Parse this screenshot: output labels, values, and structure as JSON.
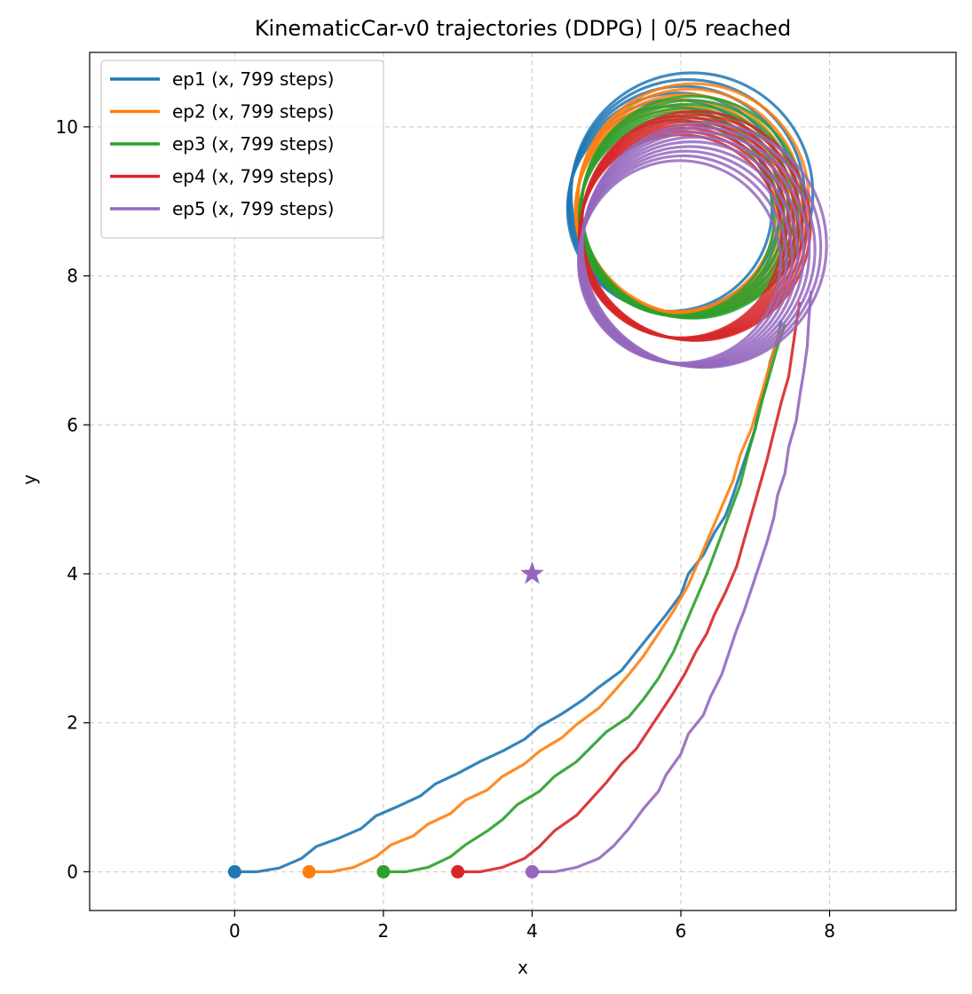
{
  "chart_data": {
    "type": "line",
    "title": "KinematicCar-v0 trajectories (DDPG) | 0/5 reached",
    "xlabel": "x",
    "ylabel": "y",
    "xlim": [
      -1.95,
      9.7
    ],
    "ylim": [
      -0.52,
      11.0
    ],
    "xticks": [
      0,
      2,
      4,
      6,
      8
    ],
    "yticks": [
      0,
      2,
      4,
      6,
      8,
      10
    ],
    "grid": true,
    "legend_position": "top-left",
    "goal": {
      "x": 4.0,
      "y": 4.0,
      "marker": "star",
      "color": "#9467bd"
    },
    "series": [
      {
        "name": "ep1 (x, 799 steps)",
        "color": "#1f77b4",
        "start": {
          "x": 0,
          "y": 0
        },
        "path": [
          [
            0,
            0
          ],
          [
            0.3,
            0
          ],
          [
            0.6,
            0.05
          ],
          [
            0.9,
            0.18
          ],
          [
            1.1,
            0.34
          ],
          [
            1.4,
            0.45
          ],
          [
            1.7,
            0.58
          ],
          [
            1.9,
            0.75
          ],
          [
            2.2,
            0.88
          ],
          [
            2.5,
            1.02
          ],
          [
            2.7,
            1.18
          ],
          [
            3.0,
            1.32
          ],
          [
            3.3,
            1.48
          ],
          [
            3.6,
            1.62
          ],
          [
            3.9,
            1.78
          ],
          [
            4.1,
            1.95
          ],
          [
            4.4,
            2.12
          ],
          [
            4.7,
            2.32
          ],
          [
            4.9,
            2.48
          ],
          [
            5.2,
            2.7
          ],
          [
            5.4,
            2.95
          ],
          [
            5.6,
            3.2
          ],
          [
            5.8,
            3.45
          ],
          [
            6.0,
            3.72
          ],
          [
            6.1,
            4.0
          ],
          [
            6.3,
            4.25
          ],
          [
            6.45,
            4.55
          ],
          [
            6.6,
            4.78
          ],
          [
            6.7,
            5.05
          ],
          [
            6.8,
            5.35
          ],
          [
            6.9,
            5.65
          ],
          [
            7.0,
            5.95
          ],
          [
            7.05,
            6.25
          ],
          [
            7.15,
            6.55
          ],
          [
            7.2,
            6.85
          ],
          [
            7.3,
            7.15
          ],
          [
            7.35,
            7.4
          ]
        ],
        "orbit": {
          "cx": 6.0,
          "cy": 9.0,
          "rx": 1.5,
          "ry": 1.5,
          "rings": 6,
          "spread": 0.1
        }
      },
      {
        "name": "ep2 (x, 799 steps)",
        "color": "#ff7f0e",
        "start": {
          "x": 1,
          "y": 0
        },
        "path": [
          [
            1,
            0
          ],
          [
            1.3,
            0
          ],
          [
            1.6,
            0.06
          ],
          [
            1.9,
            0.2
          ],
          [
            2.1,
            0.36
          ],
          [
            2.4,
            0.48
          ],
          [
            2.6,
            0.64
          ],
          [
            2.9,
            0.78
          ],
          [
            3.1,
            0.96
          ],
          [
            3.4,
            1.1
          ],
          [
            3.6,
            1.28
          ],
          [
            3.9,
            1.45
          ],
          [
            4.1,
            1.62
          ],
          [
            4.4,
            1.8
          ],
          [
            4.6,
            1.98
          ],
          [
            4.9,
            2.2
          ],
          [
            5.1,
            2.42
          ],
          [
            5.3,
            2.65
          ],
          [
            5.5,
            2.9
          ],
          [
            5.7,
            3.2
          ],
          [
            5.9,
            3.5
          ],
          [
            6.1,
            3.85
          ],
          [
            6.25,
            4.2
          ],
          [
            6.4,
            4.55
          ],
          [
            6.55,
            4.9
          ],
          [
            6.7,
            5.25
          ],
          [
            6.8,
            5.6
          ],
          [
            6.95,
            5.95
          ],
          [
            7.05,
            6.3
          ],
          [
            7.15,
            6.65
          ],
          [
            7.25,
            7.0
          ],
          [
            7.35,
            7.3
          ]
        ],
        "orbit": {
          "cx": 6.05,
          "cy": 8.95,
          "rx": 1.45,
          "ry": 1.45,
          "rings": 6,
          "spread": 0.08
        }
      },
      {
        "name": "ep3 (x, 799 steps)",
        "color": "#2ca02c",
        "start": {
          "x": 2,
          "y": 0
        },
        "path": [
          [
            2,
            0
          ],
          [
            2.3,
            0
          ],
          [
            2.6,
            0.06
          ],
          [
            2.9,
            0.2
          ],
          [
            3.1,
            0.36
          ],
          [
            3.4,
            0.55
          ],
          [
            3.6,
            0.7
          ],
          [
            3.8,
            0.9
          ],
          [
            4.1,
            1.08
          ],
          [
            4.3,
            1.28
          ],
          [
            4.6,
            1.48
          ],
          [
            4.8,
            1.68
          ],
          [
            5.0,
            1.88
          ],
          [
            5.3,
            2.08
          ],
          [
            5.5,
            2.32
          ],
          [
            5.7,
            2.6
          ],
          [
            5.9,
            2.95
          ],
          [
            6.05,
            3.3
          ],
          [
            6.2,
            3.65
          ],
          [
            6.35,
            4.0
          ],
          [
            6.5,
            4.4
          ],
          [
            6.65,
            4.8
          ],
          [
            6.8,
            5.2
          ],
          [
            6.9,
            5.6
          ],
          [
            7.0,
            5.95
          ],
          [
            7.1,
            6.35
          ],
          [
            7.2,
            6.7
          ],
          [
            7.3,
            7.05
          ],
          [
            7.4,
            7.35
          ]
        ],
        "orbit": {
          "cx": 6.05,
          "cy": 8.85,
          "rx": 1.4,
          "ry": 1.4,
          "rings": 7,
          "spread": 0.06
        }
      },
      {
        "name": "ep4 (x, 799 steps)",
        "color": "#d62728",
        "start": {
          "x": 3,
          "y": 0
        },
        "path": [
          [
            3,
            0
          ],
          [
            3.3,
            0
          ],
          [
            3.6,
            0.06
          ],
          [
            3.9,
            0.18
          ],
          [
            4.1,
            0.34
          ],
          [
            4.3,
            0.55
          ],
          [
            4.6,
            0.76
          ],
          [
            4.8,
            0.98
          ],
          [
            5.0,
            1.2
          ],
          [
            5.2,
            1.45
          ],
          [
            5.4,
            1.65
          ],
          [
            5.6,
            1.95
          ],
          [
            5.8,
            2.25
          ],
          [
            5.9,
            2.4
          ],
          [
            6.05,
            2.65
          ],
          [
            6.2,
            2.95
          ],
          [
            6.35,
            3.2
          ],
          [
            6.45,
            3.45
          ],
          [
            6.6,
            3.75
          ],
          [
            6.75,
            4.1
          ],
          [
            6.85,
            4.45
          ],
          [
            6.95,
            4.8
          ],
          [
            7.05,
            5.15
          ],
          [
            7.15,
            5.5
          ],
          [
            7.25,
            5.9
          ],
          [
            7.35,
            6.3
          ],
          [
            7.45,
            6.65
          ],
          [
            7.5,
            7.0
          ],
          [
            7.55,
            7.35
          ],
          [
            7.6,
            7.65
          ]
        ],
        "orbit": {
          "cx": 6.1,
          "cy": 8.6,
          "rx": 1.45,
          "ry": 1.45,
          "rings": 8,
          "spread": 0.05
        }
      },
      {
        "name": "ep5 (x, 799 steps)",
        "color": "#9467bd",
        "start": {
          "x": 4,
          "y": 0
        },
        "path": [
          [
            4,
            0
          ],
          [
            4.3,
            0
          ],
          [
            4.6,
            0.06
          ],
          [
            4.9,
            0.18
          ],
          [
            5.1,
            0.35
          ],
          [
            5.3,
            0.58
          ],
          [
            5.5,
            0.85
          ],
          [
            5.7,
            1.08
          ],
          [
            5.8,
            1.3
          ],
          [
            6.0,
            1.58
          ],
          [
            6.1,
            1.85
          ],
          [
            6.3,
            2.1
          ],
          [
            6.4,
            2.35
          ],
          [
            6.55,
            2.65
          ],
          [
            6.65,
            2.95
          ],
          [
            6.75,
            3.25
          ],
          [
            6.85,
            3.5
          ],
          [
            6.95,
            3.8
          ],
          [
            7.05,
            4.1
          ],
          [
            7.15,
            4.4
          ],
          [
            7.25,
            4.75
          ],
          [
            7.3,
            5.05
          ],
          [
            7.4,
            5.35
          ],
          [
            7.45,
            5.7
          ],
          [
            7.55,
            6.05
          ],
          [
            7.6,
            6.4
          ],
          [
            7.65,
            6.7
          ],
          [
            7.7,
            7.05
          ],
          [
            7.72,
            7.4
          ],
          [
            7.75,
            7.8
          ]
        ],
        "orbit": {
          "cx": 6.15,
          "cy": 8.3,
          "rx": 1.5,
          "ry": 1.5,
          "rings": 9,
          "spread": 0.07
        }
      }
    ]
  }
}
